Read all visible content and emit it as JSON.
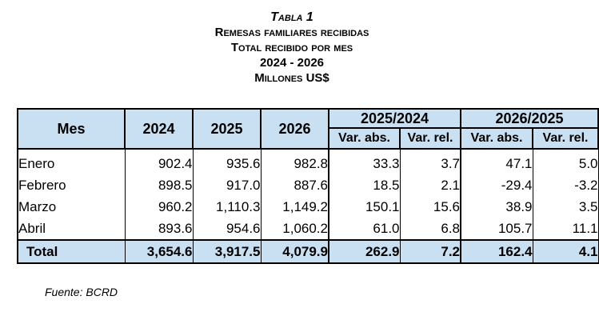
{
  "title": {
    "label": "Tabla 1",
    "line1": "Remesas familiares recibidas",
    "line2": "Total recibido por mes",
    "line3": "2024 - 2026",
    "line4": "Millones US$"
  },
  "table": {
    "col_month": "Mes",
    "years": [
      "2024",
      "2025",
      "2026"
    ],
    "groups": [
      "2025/2024",
      "2026/2025"
    ],
    "sub_abs": "Var. abs.",
    "sub_rel": "Var. rel.",
    "rows": [
      {
        "month": "Enero",
        "v": [
          "902.4",
          "935.6",
          "982.8",
          "33.3",
          "3.7",
          "47.1",
          "5.0"
        ]
      },
      {
        "month": "Febrero",
        "v": [
          "898.5",
          "917.0",
          "887.6",
          "18.5",
          "2.1",
          "-29.4",
          "-3.2"
        ]
      },
      {
        "month": "Marzo",
        "v": [
          "960.2",
          "1,110.3",
          "1,149.2",
          "150.1",
          "15.6",
          "38.9",
          "3.5"
        ]
      },
      {
        "month": "Abril",
        "v": [
          "893.6",
          "954.6",
          "1,060.2",
          "61.0",
          "6.8",
          "105.7",
          "11.1"
        ]
      }
    ],
    "total": {
      "month": "Total",
      "v": [
        "3,654.6",
        "3,917.5",
        "4,079.9",
        "262.9",
        "7.2",
        "162.4",
        "4.1"
      ]
    }
  },
  "footer": "Fuente: BCRD"
}
